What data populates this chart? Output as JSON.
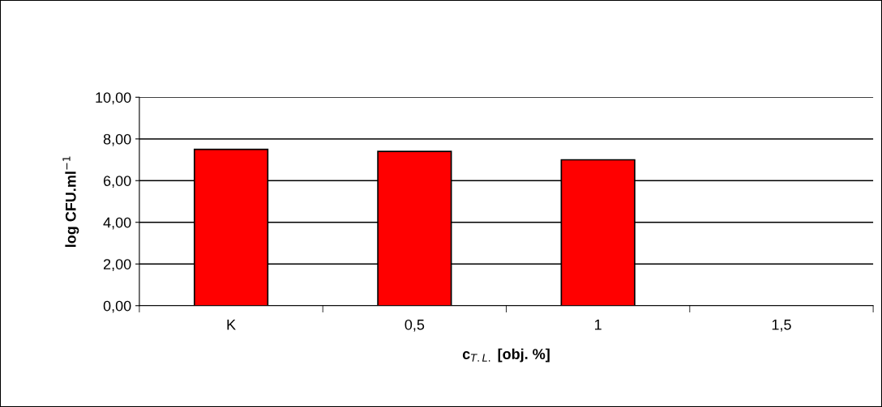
{
  "chart_data": {
    "type": "bar",
    "xlabel": "c$_{T.L.}$ [obj. %]",
    "ylabel": "log CFU.ml$^{−1}$",
    "categories": [
      "K",
      "0,5",
      "1",
      "1,5"
    ],
    "series": [
      {
        "color": "#ff0000",
        "values": [
          7.5,
          7.4,
          7.0,
          null
        ]
      }
    ],
    "ylim": [
      0,
      10
    ],
    "yticks": [
      {
        "value": 0,
        "label": "0,00"
      },
      {
        "value": 2,
        "label": "2,00"
      },
      {
        "value": 4,
        "label": "4,00"
      },
      {
        "value": 6,
        "label": "6,00"
      },
      {
        "value": 8,
        "label": "8,00"
      },
      {
        "value": 10,
        "label": "10,00"
      }
    ],
    "grid": "y",
    "legend": false
  }
}
